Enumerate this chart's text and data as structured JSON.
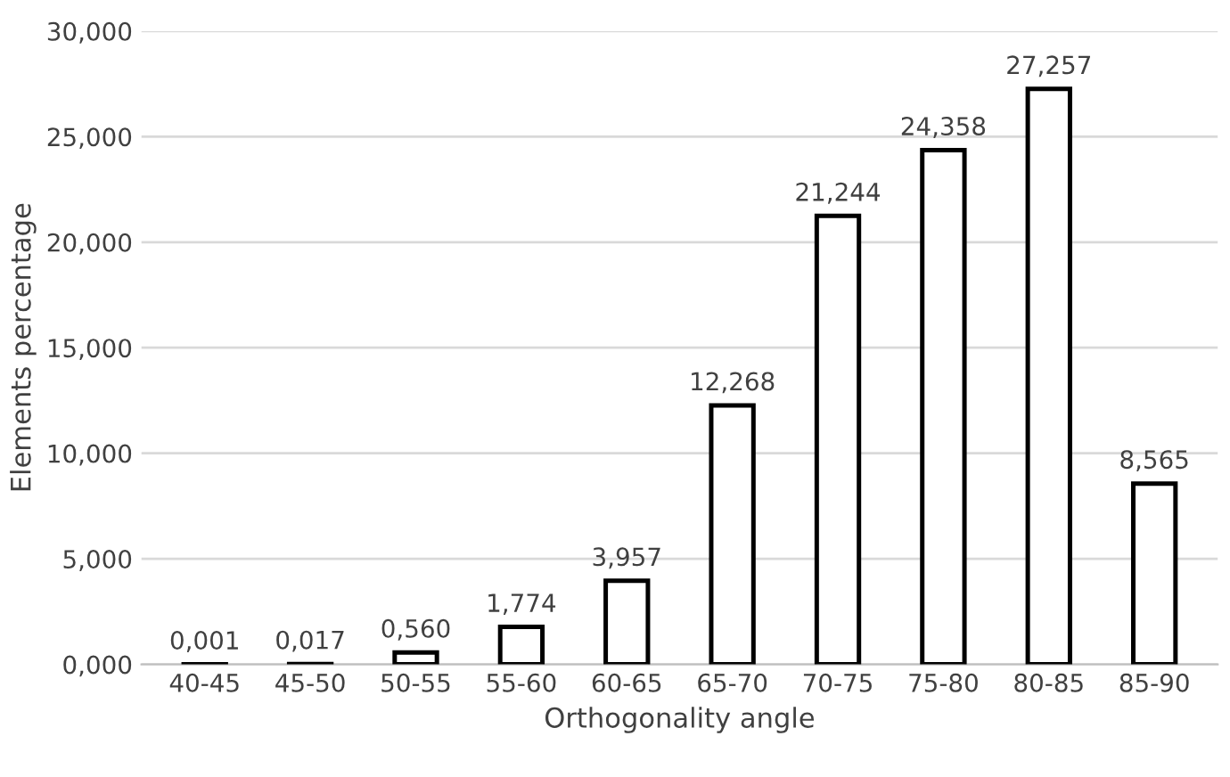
{
  "chart_data": {
    "type": "bar",
    "xlabel": "Orthogonality angle",
    "ylabel": "Elements percentage",
    "categories": [
      "40-45",
      "45-50",
      "50-55",
      "55-60",
      "60-65",
      "65-70",
      "70-75",
      "75-80",
      "80-85",
      "85-90"
    ],
    "series": [
      {
        "color": "#ffffff",
        "values": [
          0.001,
          0.017,
          0.56,
          1.774,
          3.957,
          12.268,
          21.244,
          24.358,
          27.257,
          8.565
        ],
        "value_labels": [
          "0,001",
          "0,017",
          "0,560",
          "1,774",
          "3,957",
          "12,268",
          "21,244",
          "24,358",
          "27,257",
          "8,565"
        ]
      }
    ],
    "ylim": [
      0,
      30
    ],
    "yticks": [
      {
        "value": 0,
        "label": "0,000"
      },
      {
        "value": 5,
        "label": "5,000"
      },
      {
        "value": 10,
        "label": "10,000"
      },
      {
        "value": 15,
        "label": "15,000"
      },
      {
        "value": 20,
        "label": "20,000"
      },
      {
        "value": 25,
        "label": "25,000"
      },
      {
        "value": 30,
        "label": "30,000"
      }
    ],
    "grid": "y",
    "legend": false
  }
}
